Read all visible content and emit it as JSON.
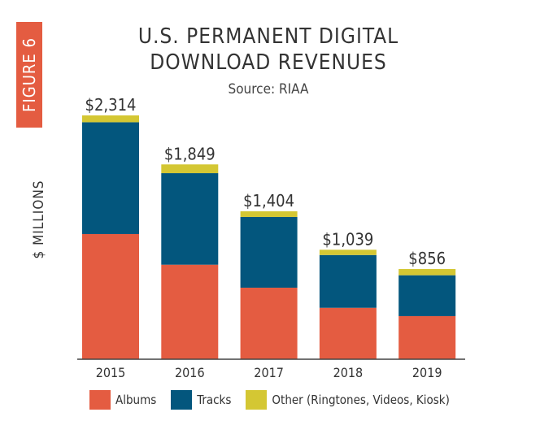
{
  "figure_label": "FIGURE 6",
  "chart_data": {
    "type": "stacked-bar",
    "title": [
      "U.S. PERMANENT DIGITAL",
      "DOWNLOAD REVENUES"
    ],
    "subtitle": "Source: RIAA",
    "ylabel": "$ MILLIONS",
    "xlabel": "",
    "categories": [
      "2015",
      "2016",
      "2017",
      "2018",
      "2019"
    ],
    "totals": [
      2314,
      1849,
      1404,
      1039,
      856
    ],
    "total_labels": [
      "$2,314",
      "$1,849",
      "$1,404",
      "$1,039",
      "$856"
    ],
    "series": [
      {
        "name": "Albums",
        "color": "#E45C41",
        "values": [
          1188,
          897,
          679,
          488,
          409
        ]
      },
      {
        "name": "Tracks",
        "color": "#03567D",
        "values": [
          1061,
          869,
          671,
          501,
          388
        ]
      },
      {
        "name": "Other (Ringtones, Videos, Kiosk)",
        "color": "#D4C733",
        "values": [
          65,
          83,
          54,
          50,
          59
        ]
      }
    ],
    "ylim": [
      0,
      2314
    ],
    "grid": false,
    "legend_position": "bottom"
  }
}
